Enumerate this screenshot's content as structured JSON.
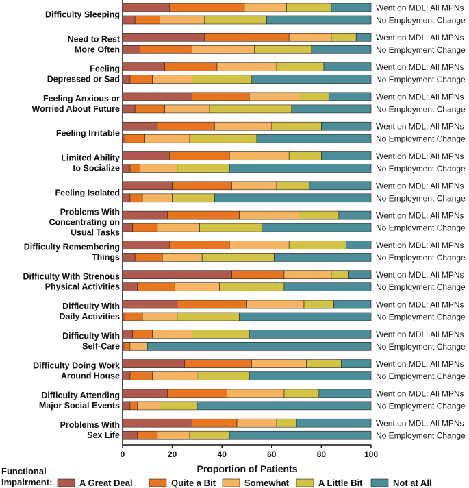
{
  "chart_data": {
    "type": "bar",
    "orientation": "horizontal-stacked",
    "xlabel": "Proportion of Patients",
    "xlim": [
      0,
      100
    ],
    "xticks": [
      "0",
      "20",
      "40",
      "60",
      "80",
      "100"
    ],
    "row_labels": [
      "Went on MDL: All MPNs",
      "No Employment Change"
    ],
    "legend": {
      "title_lines": [
        "Functional",
        "Impairment:"
      ],
      "placement": "bottom",
      "entries": [
        "A Great Deal",
        "Quite a Bit",
        "Somewhat",
        "A Little Bit",
        "Not at All"
      ]
    },
    "colors": [
      "#b05a4e",
      "#e8751f",
      "#f5b461",
      "#d2c347",
      "#4b8d98"
    ],
    "categories": [
      {
        "label_lines": [
          "Difficulty Sleeping"
        ],
        "rows": [
          [
            19,
            30,
            17,
            18,
            16
          ],
          [
            5,
            10,
            18,
            25,
            42
          ]
        ]
      },
      {
        "label_lines": [
          "Need to Rest",
          "More Often"
        ],
        "rows": [
          [
            33,
            34,
            17,
            10,
            6
          ],
          [
            7,
            21,
            25,
            23,
            24
          ]
        ]
      },
      {
        "label_lines": [
          "Feeling",
          "Depressed or Sad"
        ],
        "rows": [
          [
            17,
            21,
            24,
            19,
            19
          ],
          [
            3,
            9,
            16,
            24,
            48
          ]
        ]
      },
      {
        "label_lines": [
          "Feeling Anxious or",
          "Worried About Future"
        ],
        "rows": [
          [
            28,
            23,
            20,
            12,
            17
          ],
          [
            5,
            12,
            18,
            33,
            32
          ]
        ]
      },
      {
        "label_lines": [
          "Feeling Irritable"
        ],
        "rows": [
          [
            14,
            23,
            23,
            20,
            20
          ],
          [
            1,
            8,
            18,
            27,
            46
          ]
        ]
      },
      {
        "label_lines": [
          "Limited Ability",
          "to Socialize"
        ],
        "rows": [
          [
            19,
            24,
            24,
            13,
            20
          ],
          [
            3,
            4,
            15,
            21,
            57
          ]
        ]
      },
      {
        "label_lines": [
          "Feeling Isolated"
        ],
        "rows": [
          [
            20,
            24,
            18,
            13,
            25
          ],
          [
            3,
            5,
            12,
            17,
            63
          ]
        ]
      },
      {
        "label_lines": [
          "Problems With",
          "Concentrating on",
          "Usual Tasks"
        ],
        "rows": [
          [
            18,
            29,
            24,
            16,
            13
          ],
          [
            4,
            10,
            17,
            25,
            44
          ]
        ]
      },
      {
        "label_lines": [
          "Difficulty Remembering",
          "Things"
        ],
        "rows": [
          [
            19,
            24,
            24,
            23,
            10
          ],
          [
            5,
            11,
            16,
            29,
            39
          ]
        ]
      },
      {
        "label_lines": [
          "Difficulty With Strenous",
          "Physical Activities"
        ],
        "rows": [
          [
            44,
            21,
            19,
            7,
            9
          ],
          [
            6,
            15,
            18,
            26,
            35
          ]
        ]
      },
      {
        "label_lines": [
          "Difficulty With",
          "Daily Activities"
        ],
        "rows": [
          [
            22,
            28,
            23,
            12,
            15
          ],
          [
            1,
            7,
            14,
            25,
            53
          ]
        ]
      },
      {
        "label_lines": [
          "Difficulty With",
          "Self-Care"
        ],
        "rows": [
          [
            4,
            8,
            16,
            23,
            49
          ],
          [
            1,
            2,
            7,
            0,
            90
          ]
        ]
      },
      {
        "label_lines": [
          "Difficulty Doing Work",
          "Around House"
        ],
        "rows": [
          [
            25,
            27,
            22,
            14,
            12
          ],
          [
            3,
            9,
            18,
            21,
            49
          ]
        ]
      },
      {
        "label_lines": [
          "Difficulty Attending",
          "Major Social Events"
        ],
        "rows": [
          [
            18,
            24,
            23,
            14,
            21
          ],
          [
            3,
            3,
            9,
            15,
            70
          ]
        ]
      },
      {
        "label_lines": [
          "Problems With",
          "Sex Life"
        ],
        "rows": [
          [
            28,
            18,
            16,
            8,
            30
          ],
          [
            6,
            8,
            13,
            16,
            57
          ]
        ]
      }
    ]
  }
}
